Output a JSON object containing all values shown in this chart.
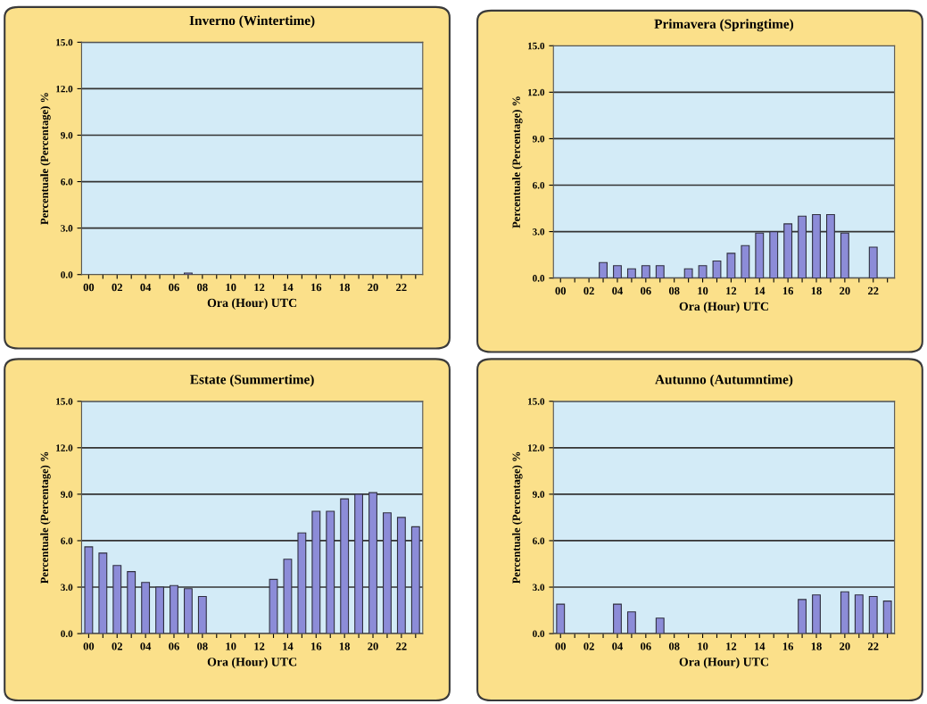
{
  "chart_data": [
    {
      "type": "bar",
      "title": "Inverno (Wintertime)",
      "xlabel": "Ora (Hour) UTC",
      "ylabel": "Percentuale (Percentage) %",
      "categories": [
        "00",
        null,
        "02",
        null,
        "04",
        null,
        "06",
        null,
        "08",
        null,
        "10",
        null,
        "12",
        null,
        "14",
        null,
        "16",
        null,
        "18",
        null,
        "20",
        null,
        "22",
        null
      ],
      "color": "#8c8cd8",
      "values": [
        0,
        0,
        0,
        0,
        0,
        0,
        0,
        0.1,
        0,
        0,
        0,
        0,
        0,
        0,
        0,
        0,
        0,
        0,
        0,
        0,
        0,
        0,
        0,
        0
      ],
      "ylim": [
        0,
        15
      ],
      "yticks": [
        {
          "value": 0,
          "label": "0.0"
        },
        {
          "value": 3,
          "label": "3.0"
        },
        {
          "value": 6,
          "label": "6.0"
        },
        {
          "value": 9,
          "label": "9.0"
        },
        {
          "value": 12,
          "label": "12.0"
        },
        {
          "value": 15,
          "label": "15.0"
        }
      ],
      "grid": "y"
    },
    {
      "type": "bar",
      "title": "Primavera (Springtime)",
      "xlabel": "Ora (Hour) UTC",
      "ylabel": "Percentuale (Percentage) %",
      "categories": [
        "00",
        null,
        "02",
        null,
        "04",
        null,
        "06",
        null,
        "08",
        null,
        "10",
        null,
        "12",
        null,
        "14",
        null,
        "16",
        null,
        "18",
        null,
        "20",
        null,
        "22",
        null
      ],
      "color": "#8c8cd8",
      "values": [
        0,
        0,
        0,
        1.0,
        0.8,
        0.6,
        0.8,
        0.8,
        0,
        0.6,
        0.8,
        1.1,
        1.6,
        2.1,
        2.9,
        3.0,
        3.5,
        4.0,
        4.1,
        4.1,
        2.9,
        0,
        2.0,
        0
      ],
      "ylim": [
        0,
        15
      ],
      "yticks": [
        {
          "value": 0,
          "label": "0.0"
        },
        {
          "value": 3,
          "label": "3.0"
        },
        {
          "value": 6,
          "label": "6.0"
        },
        {
          "value": 9,
          "label": "9.0"
        },
        {
          "value": 12,
          "label": "12.0"
        },
        {
          "value": 15,
          "label": "15.0"
        }
      ],
      "grid": "y"
    },
    {
      "type": "bar",
      "title": "Estate (Summertime)",
      "xlabel": "Ora (Hour) UTC",
      "ylabel": "Percentuale (Percentage) %",
      "categories": [
        "00",
        null,
        "02",
        null,
        "04",
        null,
        "06",
        null,
        "08",
        null,
        "10",
        null,
        "12",
        null,
        "14",
        null,
        "16",
        null,
        "18",
        null,
        "20",
        null,
        "22",
        null
      ],
      "color": "#8c8cd8",
      "values": [
        5.6,
        5.2,
        4.4,
        4.0,
        3.3,
        3.0,
        3.1,
        2.9,
        2.4,
        0,
        0,
        0,
        0,
        3.5,
        4.8,
        6.5,
        7.9,
        7.9,
        8.7,
        9.0,
        9.1,
        7.8,
        7.5,
        6.9
      ],
      "ylim": [
        0,
        15
      ],
      "yticks": [
        {
          "value": 0,
          "label": "0.0"
        },
        {
          "value": 3,
          "label": "3.0"
        },
        {
          "value": 6,
          "label": "6.0"
        },
        {
          "value": 9,
          "label": "9.0"
        },
        {
          "value": 12,
          "label": "12.0"
        },
        {
          "value": 15,
          "label": "15.0"
        }
      ],
      "grid": "y"
    },
    {
      "type": "bar",
      "title": "Autunno (Autumntime)",
      "xlabel": "Ora (Hour) UTC",
      "ylabel": "Percentuale (Percentage) %",
      "categories": [
        "00",
        null,
        "02",
        null,
        "04",
        null,
        "06",
        null,
        "08",
        null,
        "10",
        null,
        "12",
        null,
        "14",
        null,
        "16",
        null,
        "18",
        null,
        "20",
        null,
        "22",
        null
      ],
      "color": "#8c8cd8",
      "values": [
        1.9,
        0,
        0,
        0,
        1.9,
        1.4,
        0,
        1.0,
        0,
        0,
        0,
        0,
        0,
        0,
        0,
        0,
        0,
        2.2,
        2.5,
        0,
        2.7,
        2.5,
        2.4,
        2.1
      ],
      "ylim": [
        0,
        15
      ],
      "yticks": [
        {
          "value": 0,
          "label": "0.0"
        },
        {
          "value": 3,
          "label": "3.0"
        },
        {
          "value": 6,
          "label": "6.0"
        },
        {
          "value": 9,
          "label": "9.0"
        },
        {
          "value": 12,
          "label": "12.0"
        },
        {
          "value": 15,
          "label": "15.0"
        }
      ],
      "grid": "y"
    }
  ]
}
